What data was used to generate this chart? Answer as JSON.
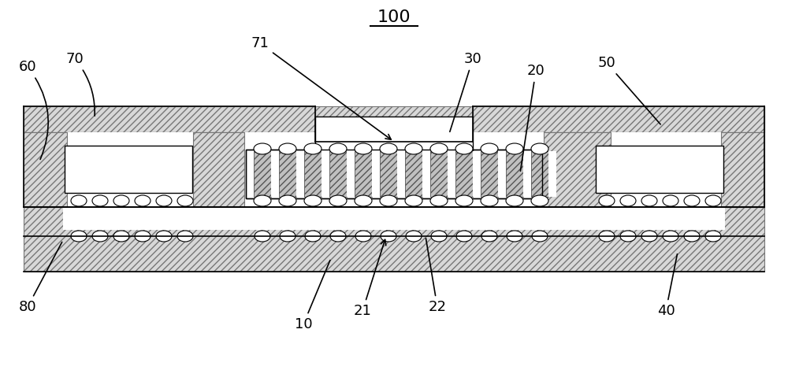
{
  "bg_color": "#ffffff",
  "lc": "#000000",
  "hatch_ec": "#777777",
  "font_size": 13,
  "title": "100",
  "hatch_light": "////",
  "hatch_dense": "////"
}
